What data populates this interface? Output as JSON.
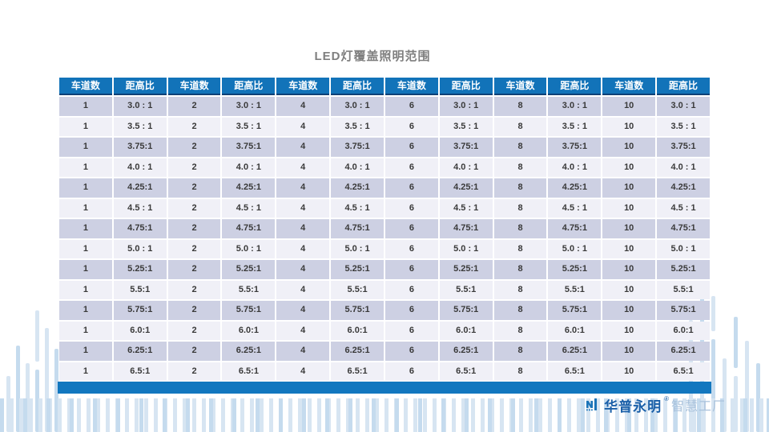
{
  "page": {
    "title": "LED灯覆盖照明范围"
  },
  "table": {
    "headers": [
      "车道数",
      "距高比",
      "车道数",
      "距高比",
      "车道数",
      "距高比",
      "车道数",
      "距高比",
      "车道数",
      "距高比",
      "车道数",
      "距高比"
    ],
    "lanes": [
      "1",
      "2",
      "4",
      "6",
      "8",
      "10"
    ],
    "ratios": [
      "3.0 : 1",
      "3.5 : 1",
      "3.75:1",
      "4.0 : 1",
      "4.25:1",
      "4.5 : 1",
      "4.75:1",
      "5.0 : 1",
      "5.25:1",
      "5.5:1",
      "5.75:1",
      "6.0:1",
      "6.25:1",
      "6.5:1"
    ]
  },
  "footer": {
    "brand": "华普永明",
    "trademark": "®",
    "suffix": "智慧工厂"
  },
  "colors": {
    "header_blue": "#1273B9",
    "header_border": "#0E4076",
    "band_lavender": "#CDD0E3",
    "band_light": "#F0F0F7",
    "footer_bar": "#1277BF",
    "decor_light": "#D7E5F2",
    "decor_medium": "#C5DBEE",
    "brand_blue": "#1A5FA8",
    "brand_light": "#A9C2DC"
  }
}
